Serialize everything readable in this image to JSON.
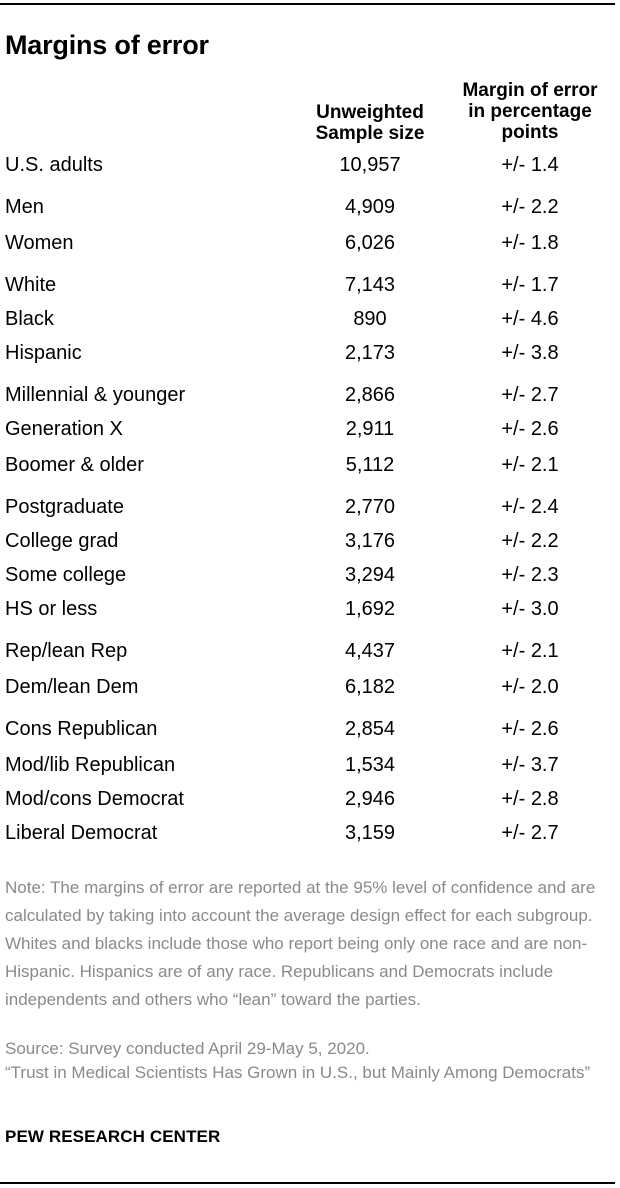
{
  "title": "Margins of error",
  "columns": {
    "sample_line1": "Unweighted",
    "sample_line2": "Sample size",
    "moe_line1": "Margin of error",
    "moe_line2": "in percentage",
    "moe_line3": "points"
  },
  "rows": [
    {
      "label": "U.S. adults",
      "n": "10,957",
      "moe": "+/- 1.4"
    },
    {
      "label": "Men",
      "n": "4,909",
      "moe": "+/- 2.2"
    },
    {
      "label": "Women",
      "n": "6,026",
      "moe": "+/- 1.8"
    },
    {
      "label": "White",
      "n": "7,143",
      "moe": "+/- 1.7"
    },
    {
      "label": "Black",
      "n": "890",
      "moe": "+/- 4.6"
    },
    {
      "label": "Hispanic",
      "n": "2,173",
      "moe": "+/- 3.8"
    },
    {
      "label": "Millennial & younger",
      "n": "2,866",
      "moe": "+/- 2.7"
    },
    {
      "label": "Generation X",
      "n": "2,911",
      "moe": "+/- 2.6"
    },
    {
      "label": "Boomer & older",
      "n": "5,112",
      "moe": "+/- 2.1"
    },
    {
      "label": "Postgraduate",
      "n": "2,770",
      "moe": "+/- 2.4"
    },
    {
      "label": "College grad",
      "n": "3,176",
      "moe": "+/- 2.2"
    },
    {
      "label": "Some college",
      "n": "3,294",
      "moe": "+/- 2.3"
    },
    {
      "label": "HS or less",
      "n": "1,692",
      "moe": "+/- 3.0"
    },
    {
      "label": "Rep/lean Rep",
      "n": "4,437",
      "moe": "+/- 2.1"
    },
    {
      "label": "Dem/lean Dem",
      "n": "6,182",
      "moe": "+/- 2.0"
    },
    {
      "label": "Cons Republican",
      "n": "2,854",
      "moe": "+/- 2.6"
    },
    {
      "label": "Mod/lib Republican",
      "n": "1,534",
      "moe": "+/- 3.7"
    },
    {
      "label": "Mod/cons Democrat",
      "n": "2,946",
      "moe": "+/- 2.8"
    },
    {
      "label": "Liberal Democrat",
      "n": "3,159",
      "moe": "+/- 2.7"
    }
  ],
  "note": "Note: The margins of error are reported at the 95% level of confidence and are calculated by taking into account the average design effect for each subgroup. Whites and blacks include those who report being only one race and are non-Hispanic. Hispanics are of any race. Republicans and Democrats include independents and others who “lean” toward the parties.",
  "source": "Source: Survey conducted April 29-May 5, 2020.",
  "report_title": "“Trust in Medical Scientists Has Grown in U.S., but Mainly Among Democrats”",
  "organization": "PEW RESEARCH CENTER"
}
